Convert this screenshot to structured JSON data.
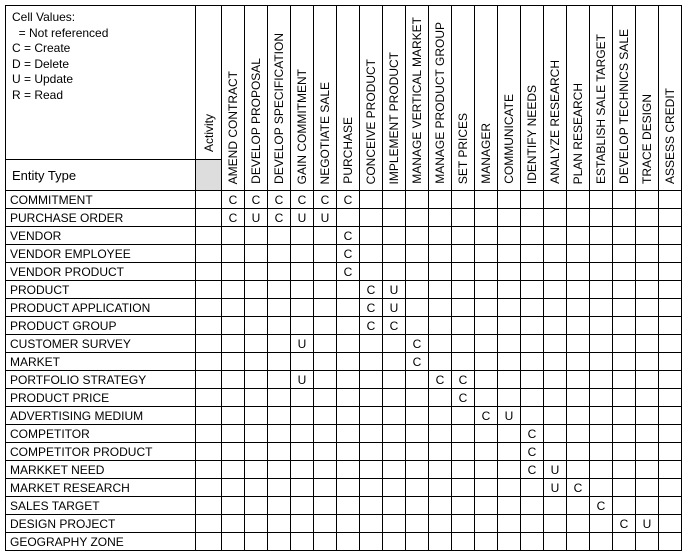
{
  "legend": {
    "title": "Cell Values:",
    "blank": " = Not referenced",
    "c": "C = Create",
    "d": "D = Delete",
    "u": "U = Update",
    "r": "R = Read"
  },
  "activity_label": "Activity",
  "entity_type_label": "Entity Type",
  "columns": [
    "AMEND CONTRACT",
    "DEVELOP PROPOSAL",
    "DEVELOP SPECIFICATION",
    "GAIN COMMITMENT",
    "NEGOTIATE SALE",
    "PURCHASE",
    "CONCEIVE PRODUCT",
    "IMPLEMENT PRODUCT",
    "MANAGE VERTICAL MARKET",
    "MANAGE PRODUCT GROUP",
    "SET PRICES",
    "MANAGER",
    "COMMUNICATE",
    "IDENTIFY NEEDS",
    "ANALYZE RESEARCH",
    "PLAN RESEARCH",
    "ESTABLISH SALE TARGET",
    "DEVELOP TECHNICS SALE",
    "TRACE DESIGN",
    "ASSESS CREDIT"
  ],
  "rows": [
    {
      "label": "COMMITMENT",
      "cells": [
        "C",
        "C",
        "C",
        "C",
        "C",
        "C",
        "",
        "",
        "",
        "",
        "",
        "",
        "",
        "",
        "",
        "",
        "",
        "",
        "",
        ""
      ]
    },
    {
      "label": "PURCHASE ORDER",
      "cells": [
        "C",
        "U",
        "C",
        "U",
        "U",
        "",
        "",
        "",
        "",
        "",
        "",
        "",
        "",
        "",
        "",
        "",
        "",
        "",
        "",
        ""
      ]
    },
    {
      "label": "VENDOR",
      "cells": [
        "",
        "",
        "",
        "",
        "",
        "C",
        "",
        "",
        "",
        "",
        "",
        "",
        "",
        "",
        "",
        "",
        "",
        "",
        "",
        ""
      ]
    },
    {
      "label": "VENDOR EMPLOYEE",
      "cells": [
        "",
        "",
        "",
        "",
        "",
        "C",
        "",
        "",
        "",
        "",
        "",
        "",
        "",
        "",
        "",
        "",
        "",
        "",
        "",
        ""
      ]
    },
    {
      "label": "VENDOR PRODUCT",
      "cells": [
        "",
        "",
        "",
        "",
        "",
        "C",
        "",
        "",
        "",
        "",
        "",
        "",
        "",
        "",
        "",
        "",
        "",
        "",
        "",
        ""
      ]
    },
    {
      "label": "PRODUCT",
      "cells": [
        "",
        "",
        "",
        "",
        "",
        "",
        "C",
        "U",
        "",
        "",
        "",
        "",
        "",
        "",
        "",
        "",
        "",
        "",
        "",
        ""
      ]
    },
    {
      "label": "PRODUCT APPLICATION",
      "cells": [
        "",
        "",
        "",
        "",
        "",
        "",
        "C",
        "U",
        "",
        "",
        "",
        "",
        "",
        "",
        "",
        "",
        "",
        "",
        "",
        ""
      ]
    },
    {
      "label": "PRODUCT GROUP",
      "cells": [
        "",
        "",
        "",
        "",
        "",
        "",
        "C",
        "C",
        "",
        "",
        "",
        "",
        "",
        "",
        "",
        "",
        "",
        "",
        "",
        ""
      ]
    },
    {
      "label": "CUSTOMER SURVEY",
      "cells": [
        "",
        "",
        "",
        "U",
        "",
        "",
        "",
        "",
        "C",
        "",
        "",
        "",
        "",
        "",
        "",
        "",
        "",
        "",
        "",
        ""
      ]
    },
    {
      "label": "MARKET",
      "cells": [
        "",
        "",
        "",
        "",
        "",
        "",
        "",
        "",
        "C",
        "",
        "",
        "",
        "",
        "",
        "",
        "",
        "",
        "",
        "",
        ""
      ]
    },
    {
      "label": "PORTFOLIO STRATEGY",
      "cells": [
        "",
        "",
        "",
        "U",
        "",
        "",
        "",
        "",
        "",
        "C",
        "C",
        "",
        "",
        "",
        "",
        "",
        "",
        "",
        "",
        ""
      ]
    },
    {
      "label": "PRODUCT PRICE",
      "cells": [
        "",
        "",
        "",
        "",
        "",
        "",
        "",
        "",
        "",
        "",
        "C",
        "",
        "",
        "",
        "",
        "",
        "",
        "",
        "",
        ""
      ]
    },
    {
      "label": "ADVERTISING MEDIUM",
      "cells": [
        "",
        "",
        "",
        "",
        "",
        "",
        "",
        "",
        "",
        "",
        "",
        "C",
        "U",
        "",
        "",
        "",
        "",
        "",
        "",
        ""
      ]
    },
    {
      "label": "COMPETITOR",
      "cells": [
        "",
        "",
        "",
        "",
        "",
        "",
        "",
        "",
        "",
        "",
        "",
        "",
        "",
        "C",
        "",
        "",
        "",
        "",
        "",
        ""
      ]
    },
    {
      "label": "COMPETITOR PRODUCT",
      "cells": [
        "",
        "",
        "",
        "",
        "",
        "",
        "",
        "",
        "",
        "",
        "",
        "",
        "",
        "C",
        "",
        "",
        "",
        "",
        "",
        ""
      ]
    },
    {
      "label": "MARKKET NEED",
      "cells": [
        "",
        "",
        "",
        "",
        "",
        "",
        "",
        "",
        "",
        "",
        "",
        "",
        "",
        "C",
        "U",
        "",
        "",
        "",
        "",
        ""
      ]
    },
    {
      "label": "MARKET RESEARCH",
      "cells": [
        "",
        "",
        "",
        "",
        "",
        "",
        "",
        "",
        "",
        "",
        "",
        "",
        "",
        "",
        "U",
        "C",
        "",
        "",
        "",
        ""
      ]
    },
    {
      "label": "SALES TARGET",
      "cells": [
        "",
        "",
        "",
        "",
        "",
        "",
        "",
        "",
        "",
        "",
        "",
        "",
        "",
        "",
        "",
        "",
        "C",
        "",
        "",
        ""
      ]
    },
    {
      "label": "DESIGN PROJECT",
      "cells": [
        "",
        "",
        "",
        "",
        "",
        "",
        "",
        "",
        "",
        "",
        "",
        "",
        "",
        "",
        "",
        "",
        "",
        "C",
        "U",
        ""
      ]
    },
    {
      "label": "GEOGRAPHY ZONE",
      "cells": [
        "",
        "",
        "",
        "",
        "",
        "",
        "",
        "",
        "",
        "",
        "",
        "",
        "",
        "",
        "",
        "",
        "",
        "",
        "",
        ""
      ]
    }
  ],
  "style": {
    "label_col_width": 190,
    "activity_col_width": 26,
    "data_col_width": 23,
    "background": "#ffffff",
    "border_color": "#000000",
    "font_family": "Arial",
    "font_size": 12,
    "shaded_bg": "#dddddd"
  }
}
